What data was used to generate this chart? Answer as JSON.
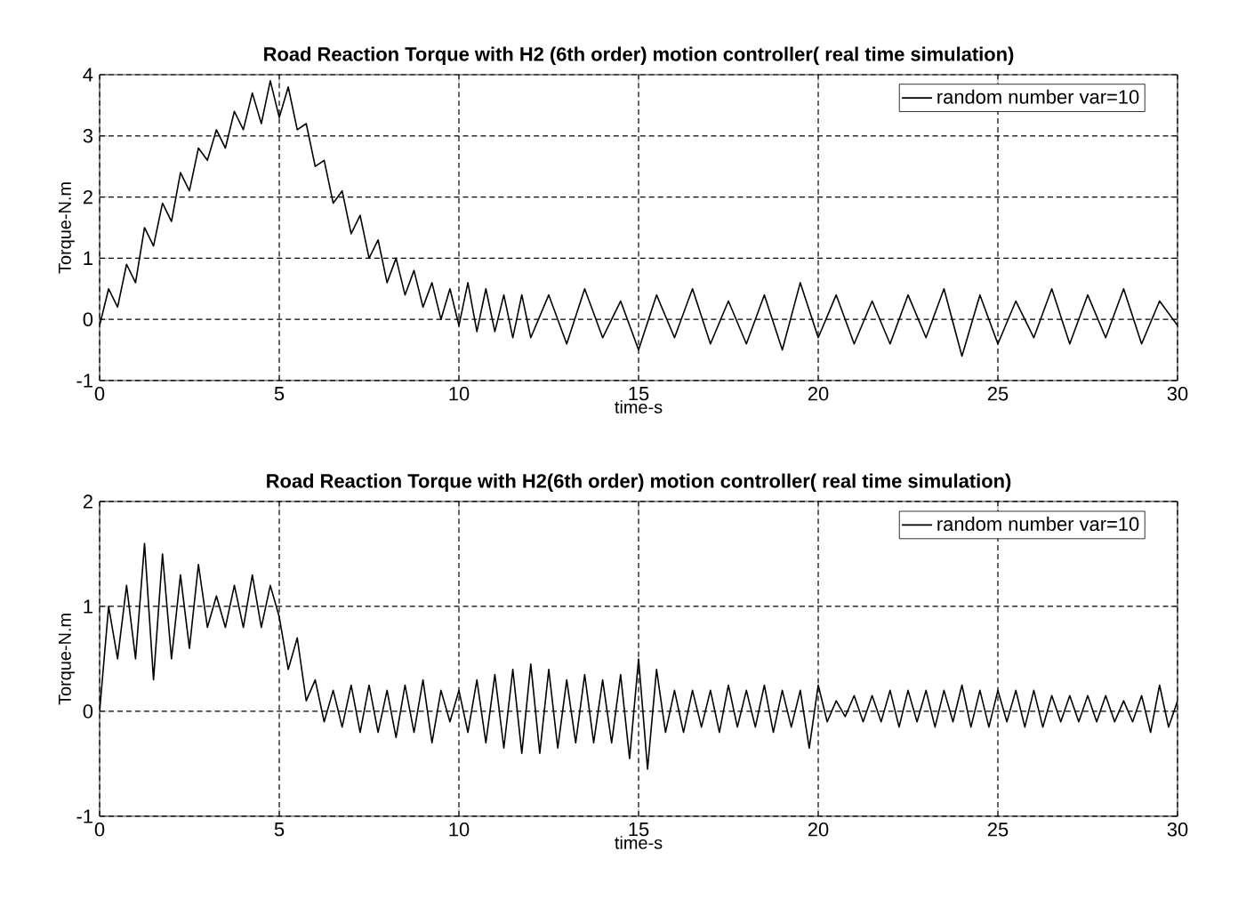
{
  "chart_data": [
    {
      "type": "line",
      "title": "Road Reaction Torque with H2 (6th order) motion controller( real time simulation)",
      "xlabel": "time-s",
      "ylabel": "Torque-N.m",
      "xlim": [
        0,
        30
      ],
      "ylim": [
        -1,
        4
      ],
      "xticks": [
        0,
        5,
        10,
        15,
        20,
        25,
        30
      ],
      "yticks": [
        -1,
        0,
        1,
        2,
        3,
        4
      ],
      "grid": true,
      "legend": "top right",
      "series": [
        {
          "name": "random number var=10",
          "color": "#000000",
          "x": [
            0,
            0.25,
            0.5,
            0.75,
            1,
            1.25,
            1.5,
            1.75,
            2,
            2.25,
            2.5,
            2.75,
            3,
            3.25,
            3.5,
            3.75,
            4,
            4.25,
            4.5,
            4.75,
            5,
            5.25,
            5.5,
            5.75,
            6,
            6.25,
            6.5,
            6.75,
            7,
            7.25,
            7.5,
            7.75,
            8,
            8.25,
            8.5,
            8.75,
            9,
            9.25,
            9.5,
            9.75,
            10,
            10.25,
            10.5,
            10.75,
            11,
            11.25,
            11.5,
            11.75,
            12,
            12.5,
            13,
            13.5,
            14,
            14.5,
            15,
            15.5,
            16,
            16.5,
            17,
            17.5,
            18,
            18.5,
            19,
            19.5,
            20,
            20.5,
            21,
            21.5,
            22,
            22.5,
            23,
            23.5,
            24,
            24.5,
            25,
            25.5,
            26,
            26.5,
            27,
            27.5,
            28,
            28.5,
            29,
            29.5,
            30
          ],
          "values": [
            -0.1,
            0.5,
            0.2,
            0.9,
            0.6,
            1.5,
            1.2,
            1.9,
            1.6,
            2.4,
            2.1,
            2.8,
            2.6,
            3.1,
            2.8,
            3.4,
            3.1,
            3.7,
            3.2,
            3.9,
            3.3,
            3.8,
            3.1,
            3.2,
            2.5,
            2.6,
            1.9,
            2.1,
            1.4,
            1.7,
            1.0,
            1.3,
            0.6,
            1.0,
            0.4,
            0.8,
            0.2,
            0.6,
            0.0,
            0.5,
            -0.1,
            0.6,
            -0.2,
            0.5,
            -0.2,
            0.4,
            -0.3,
            0.4,
            -0.3,
            0.4,
            -0.4,
            0.5,
            -0.3,
            0.3,
            -0.5,
            0.4,
            -0.3,
            0.5,
            -0.4,
            0.3,
            -0.4,
            0.4,
            -0.5,
            0.6,
            -0.3,
            0.4,
            -0.4,
            0.3,
            -0.4,
            0.4,
            -0.3,
            0.5,
            -0.6,
            0.4,
            -0.4,
            0.3,
            -0.3,
            0.5,
            -0.4,
            0.4,
            -0.3,
            0.5,
            -0.4,
            0.3,
            -0.1
          ]
        }
      ]
    },
    {
      "type": "line",
      "title": "Road Reaction Torque with H2(6th order) motion controller( real time simulation)",
      "xlabel": "time-s",
      "ylabel": "Torque-N.m",
      "xlim": [
        0,
        30
      ],
      "ylim": [
        -1,
        2
      ],
      "xticks": [
        0,
        5,
        10,
        15,
        20,
        25,
        30
      ],
      "yticks": [
        -1,
        0,
        1,
        2
      ],
      "grid": true,
      "legend": "top right",
      "series": [
        {
          "name": "random number var=10",
          "color": "#000000",
          "x": [
            0,
            0.25,
            0.5,
            0.75,
            1,
            1.25,
            1.5,
            1.75,
            2,
            2.25,
            2.5,
            2.75,
            3,
            3.25,
            3.5,
            3.75,
            4,
            4.25,
            4.5,
            4.75,
            5,
            5.25,
            5.5,
            5.75,
            6,
            6.25,
            6.5,
            6.75,
            7,
            7.25,
            7.5,
            7.75,
            8,
            8.25,
            8.5,
            8.75,
            9,
            9.25,
            9.5,
            9.75,
            10,
            10.25,
            10.5,
            10.75,
            11,
            11.25,
            11.5,
            11.75,
            12,
            12.25,
            12.5,
            12.75,
            13,
            13.25,
            13.5,
            13.75,
            14,
            14.25,
            14.5,
            14.75,
            15,
            15.25,
            15.5,
            15.75,
            16,
            16.25,
            16.5,
            16.75,
            17,
            17.25,
            17.5,
            17.75,
            18,
            18.25,
            18.5,
            18.75,
            19,
            19.25,
            19.5,
            19.75,
            20,
            20.25,
            20.5,
            20.75,
            21,
            21.25,
            21.5,
            21.75,
            22,
            22.25,
            22.5,
            22.75,
            23,
            23.25,
            23.5,
            23.75,
            24,
            24.25,
            24.5,
            24.75,
            25,
            25.25,
            25.5,
            25.75,
            26,
            26.25,
            26.5,
            26.75,
            27,
            27.25,
            27.5,
            27.75,
            28,
            28.25,
            28.5,
            28.75,
            29,
            29.25,
            29.5,
            29.75,
            30
          ],
          "values": [
            0,
            1.0,
            0.5,
            1.2,
            0.5,
            1.6,
            0.3,
            1.5,
            0.5,
            1.3,
            0.6,
            1.4,
            0.8,
            1.1,
            0.8,
            1.2,
            0.8,
            1.3,
            0.8,
            1.2,
            0.9,
            0.4,
            0.7,
            0.1,
            0.3,
            -0.1,
            0.2,
            -0.15,
            0.25,
            -0.2,
            0.25,
            -0.2,
            0.2,
            -0.25,
            0.25,
            -0.2,
            0.3,
            -0.3,
            0.2,
            -0.1,
            0.2,
            -0.2,
            0.3,
            -0.3,
            0.35,
            -0.35,
            0.4,
            -0.4,
            0.45,
            -0.4,
            0.4,
            -0.35,
            0.3,
            -0.3,
            0.35,
            -0.3,
            0.3,
            -0.3,
            0.35,
            -0.45,
            0.5,
            -0.55,
            0.4,
            -0.2,
            0.2,
            -0.2,
            0.2,
            -0.15,
            0.2,
            -0.2,
            0.25,
            -0.15,
            0.2,
            -0.15,
            0.25,
            -0.2,
            0.2,
            -0.15,
            0.2,
            -0.35,
            0.25,
            -0.1,
            0.1,
            -0.05,
            0.15,
            -0.1,
            0.15,
            -0.1,
            0.2,
            -0.15,
            0.2,
            -0.1,
            0.2,
            -0.15,
            0.2,
            -0.1,
            0.25,
            -0.15,
            0.2,
            -0.15,
            0.2,
            -0.1,
            0.2,
            -0.15,
            0.2,
            -0.15,
            0.15,
            -0.1,
            0.15,
            -0.1,
            0.15,
            -0.1,
            0.15,
            -0.1,
            0.1,
            -0.1,
            0.15,
            -0.2,
            0.25,
            -0.15,
            0.1
          ]
        }
      ]
    }
  ]
}
